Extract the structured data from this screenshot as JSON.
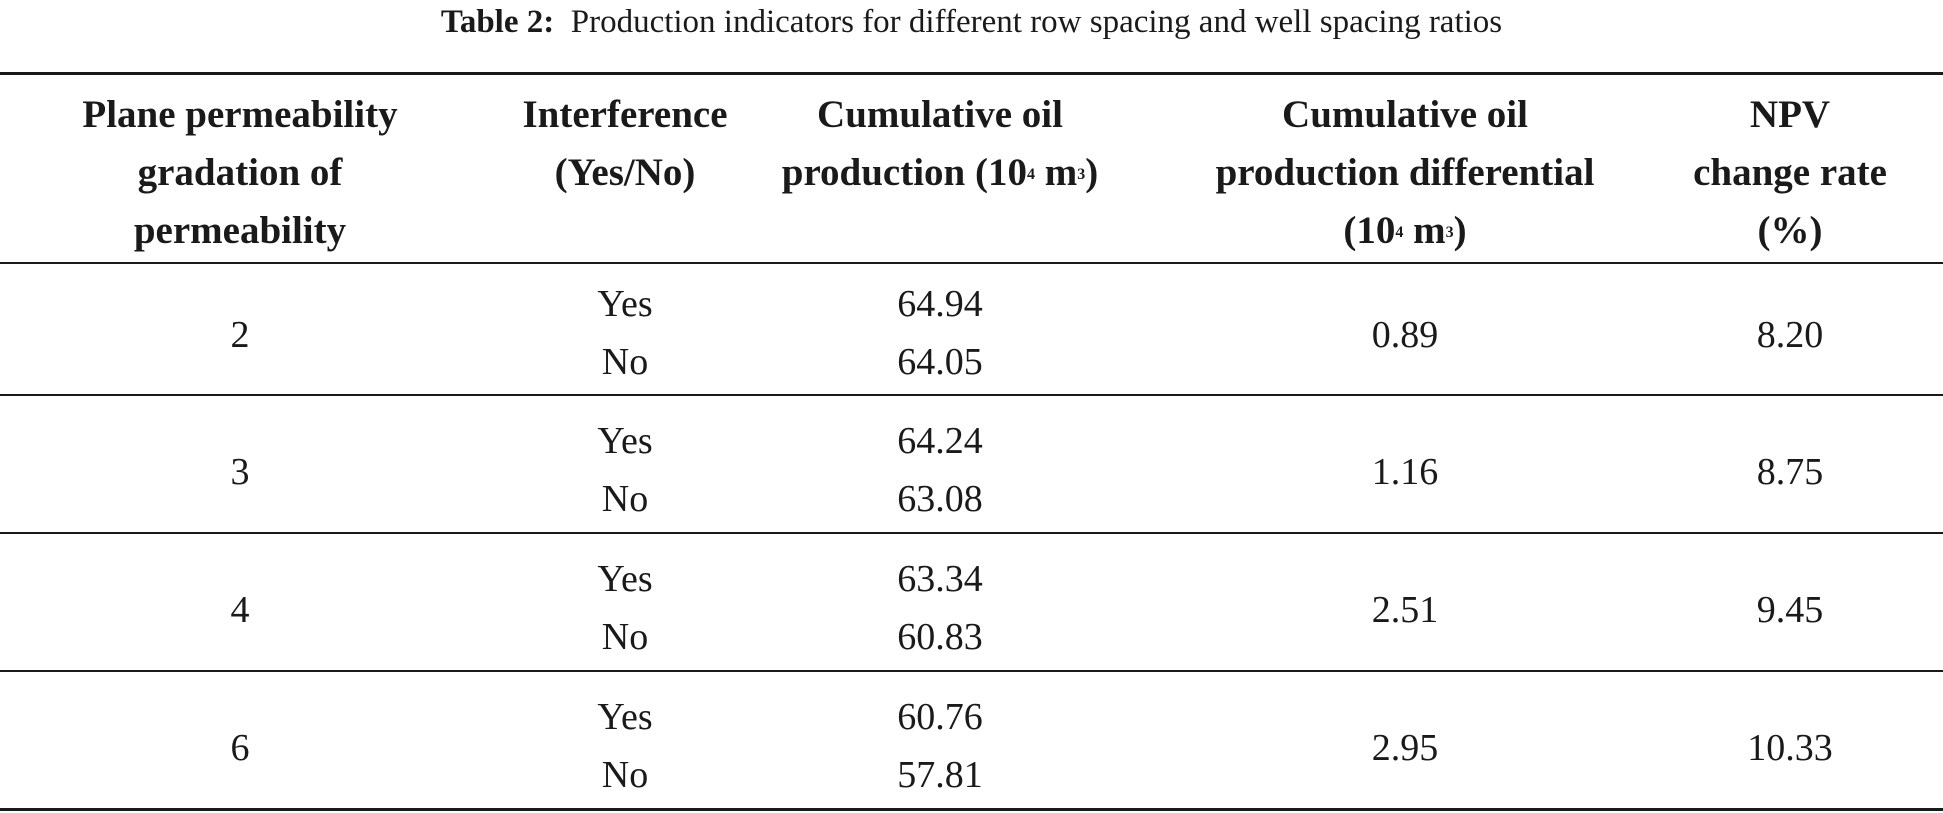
{
  "caption": {
    "label": "Table 2:",
    "text": "Production indicators for different row spacing and well spacing ratios"
  },
  "headers": {
    "col1": [
      "Plane permeability",
      "gradation of",
      "permeability"
    ],
    "col2": [
      "Interference",
      "(Yes/No)"
    ],
    "col3": {
      "line1": "Cumulative oil",
      "line2_prefix": "production (10",
      "line2_sup1": "4",
      "line2_mid": " m",
      "line2_sup2": "3",
      "line2_suffix": ")"
    },
    "col4": {
      "line1": "Cumulative oil",
      "line2": "production differential",
      "line3_prefix": "(10",
      "line3_sup1": "4",
      "line3_mid": " m",
      "line3_sup2": "3",
      "line3_suffix": ")"
    },
    "col5": [
      "NPV",
      "change rate",
      "(%)"
    ]
  },
  "rows": [
    {
      "gradation": "2",
      "interference": [
        "Yes",
        "No"
      ],
      "cumulative": [
        "64.94",
        "64.05"
      ],
      "differential": "0.89",
      "npv": "8.20"
    },
    {
      "gradation": "3",
      "interference": [
        "Yes",
        "No"
      ],
      "cumulative": [
        "64.24",
        "63.08"
      ],
      "differential": "1.16",
      "npv": "8.75"
    },
    {
      "gradation": "4",
      "interference": [
        "Yes",
        "No"
      ],
      "cumulative": [
        "63.34",
        "60.83"
      ],
      "differential": "2.51",
      "npv": "9.45"
    },
    {
      "gradation": "6",
      "interference": [
        "Yes",
        "No"
      ],
      "cumulative": [
        "60.76",
        "57.81"
      ],
      "differential": "2.95",
      "npv": "10.33"
    }
  ]
}
